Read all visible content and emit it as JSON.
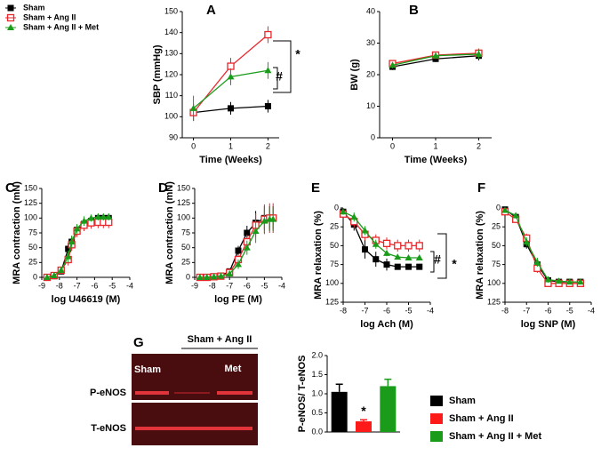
{
  "chart_data": [
    {
      "type": "line",
      "panel": "A",
      "ylabel": "SBP (mmHg)",
      "xlabel": "Time (Weeks)",
      "xlim": [
        -0.3,
        2.3
      ],
      "xticks": [
        0,
        1,
        2
      ],
      "ylim": [
        90,
        150
      ],
      "yticks": [
        90,
        100,
        110,
        120,
        130,
        140,
        150
      ],
      "x": [
        0,
        1,
        2
      ],
      "series": [
        {
          "name": "Sham",
          "color": "#000000",
          "marker": "square",
          "values": [
            102,
            104,
            105
          ],
          "errors": [
            4,
            3,
            3
          ]
        },
        {
          "name": "Sham + Ang II",
          "color": "#e8262b",
          "marker": "open-square",
          "values": [
            102,
            124,
            139
          ],
          "errors": [
            4,
            4,
            4
          ]
        },
        {
          "name": "Sham + Ang II + Met",
          "color": "#1a9c1a",
          "marker": "triangle",
          "values": [
            104,
            119,
            122
          ],
          "errors": [
            6,
            4,
            4
          ]
        }
      ],
      "annotations": [
        "*",
        "#"
      ]
    },
    {
      "type": "line",
      "panel": "B",
      "ylabel": "BW (g)",
      "xlabel": "Time (Weeks)",
      "xlim": [
        -0.3,
        2.3
      ],
      "xticks": [
        0,
        1,
        2
      ],
      "ylim": [
        0,
        40
      ],
      "yticks": [
        0,
        10,
        20,
        30,
        40
      ],
      "x": [
        0,
        1,
        2
      ],
      "series": [
        {
          "name": "Sham",
          "color": "#000000",
          "marker": "square",
          "values": [
            22.5,
            25,
            26
          ],
          "errors": [
            1,
            1,
            1.5
          ]
        },
        {
          "name": "Sham + Ang II",
          "color": "#e8262b",
          "marker": "open-square",
          "values": [
            23.5,
            26.2,
            26.8
          ],
          "errors": [
            1,
            1,
            1.5
          ]
        },
        {
          "name": "Sham + Ang II + Met",
          "color": "#1a9c1a",
          "marker": "triangle",
          "values": [
            23,
            26,
            26.5
          ],
          "errors": [
            1,
            1,
            1.5
          ]
        }
      ]
    },
    {
      "type": "line",
      "panel": "C",
      "ylabel": "MRA contraction (mN)",
      "xlabel": "log U46619 (M)",
      "xlim": [
        -9,
        -4
      ],
      "xticks": [
        -9,
        -8,
        -7,
        -6,
        -5,
        -4
      ],
      "ylim": [
        0,
        150
      ],
      "yticks": [
        0,
        25,
        50,
        75,
        100,
        125,
        150
      ],
      "x": [
        -8.7,
        -8.3,
        -7.9,
        -7.5,
        -7.3,
        -7.0,
        -6.6,
        -6.2,
        -5.8,
        -5.5,
        -5.2
      ],
      "series": [
        {
          "name": "Sham",
          "color": "#000000",
          "marker": "square",
          "values": [
            0,
            2,
            10,
            48,
            60,
            80,
            90,
            95,
            100,
            100,
            100
          ],
          "errors": [
            2,
            3,
            5,
            10,
            10,
            8,
            8,
            6,
            6,
            6,
            6
          ]
        },
        {
          "name": "Sham + Ang II",
          "color": "#e8262b",
          "marker": "open-square",
          "values": [
            0,
            3,
            12,
            30,
            55,
            78,
            88,
            92,
            93,
            93,
            93
          ],
          "errors": [
            2,
            3,
            6,
            10,
            10,
            10,
            10,
            10,
            10,
            10,
            10
          ]
        },
        {
          "name": "Sham + Ang II + Met",
          "color": "#1a9c1a",
          "marker": "triangle",
          "values": [
            0,
            3,
            12,
            35,
            60,
            82,
            95,
            100,
            102,
            102,
            102
          ],
          "errors": [
            2,
            3,
            5,
            10,
            10,
            8,
            8,
            6,
            6,
            6,
            6
          ]
        }
      ]
    },
    {
      "type": "line",
      "panel": "D",
      "ylabel": "MRA contraction (mN)",
      "xlabel": "log PE (M)",
      "xlim": [
        -9,
        -4
      ],
      "xticks": [
        -9,
        -8,
        -7,
        -6,
        -5,
        -4
      ],
      "ylim": [
        0,
        150
      ],
      "yticks": [
        0,
        25,
        50,
        75,
        100,
        125,
        150
      ],
      "x": [
        -8.7,
        -8.3,
        -7.9,
        -7.5,
        -7.0,
        -6.5,
        -6.0,
        -5.5,
        -5.0,
        -4.7,
        -4.5
      ],
      "series": [
        {
          "name": "Sham",
          "color": "#000000",
          "marker": "square",
          "values": [
            0,
            0,
            1,
            3,
            10,
            45,
            75,
            92,
            100,
            100,
            100
          ],
          "errors": [
            1,
            1,
            2,
            3,
            5,
            8,
            12,
            20,
            20,
            20,
            20
          ]
        },
        {
          "name": "Sham + Ang II",
          "color": "#e8262b",
          "marker": "open-square",
          "values": [
            0,
            0,
            1,
            2,
            8,
            30,
            60,
            88,
            98,
            100,
            100
          ],
          "errors": [
            1,
            1,
            2,
            3,
            5,
            8,
            12,
            20,
            25,
            25,
            25
          ]
        },
        {
          "name": "Sham + Ang II + Met",
          "color": "#1a9c1a",
          "marker": "triangle",
          "values": [
            0,
            0,
            1,
            2,
            6,
            22,
            50,
            78,
            95,
            98,
            98
          ],
          "errors": [
            1,
            1,
            2,
            3,
            5,
            8,
            12,
            20,
            20,
            20,
            20
          ]
        }
      ]
    },
    {
      "type": "line",
      "panel": "E",
      "ylabel": "MRA relaxation (%)",
      "xlabel": "log Ach (M)",
      "y_inverted": true,
      "xlim": [
        -8,
        -4
      ],
      "xticks": [
        -8,
        -7,
        -6,
        -5,
        -4
      ],
      "ylim": [
        0,
        125
      ],
      "yticks": [
        0,
        25,
        50,
        75,
        100,
        125
      ],
      "x": [
        -8,
        -7.5,
        -7,
        -6.5,
        -6,
        -5.5,
        -5,
        -4.5
      ],
      "series": [
        {
          "name": "Sham",
          "color": "#000000",
          "marker": "square",
          "values": [
            5,
            22,
            55,
            68,
            75,
            78,
            78,
            78
          ],
          "errors": [
            4,
            8,
            12,
            10,
            8,
            3,
            3,
            3
          ]
        },
        {
          "name": "Sham + Ang II",
          "color": "#e8262b",
          "marker": "open-square",
          "values": [
            8,
            18,
            35,
            43,
            47,
            50,
            50,
            50
          ],
          "errors": [
            5,
            8,
            8,
            8,
            8,
            8,
            8,
            8
          ]
        },
        {
          "name": "Sham + Ang II + Met",
          "color": "#1a9c1a",
          "marker": "triangle",
          "values": [
            5,
            12,
            30,
            48,
            60,
            65,
            66,
            66
          ],
          "errors": [
            4,
            6,
            6,
            6,
            4,
            3,
            3,
            3
          ]
        }
      ],
      "annotations": [
        "*",
        "#"
      ]
    },
    {
      "type": "line",
      "panel": "F",
      "ylabel": "MRA relaxation (%)",
      "xlabel": "log SNP (M)",
      "y_inverted": true,
      "xlim": [
        -8,
        -4
      ],
      "xticks": [
        -8,
        -7,
        -6,
        -5,
        -4
      ],
      "ylim": [
        0,
        125
      ],
      "yticks": [
        0,
        25,
        50,
        75,
        100,
        125
      ],
      "x": [
        -8,
        -7.5,
        -7,
        -6.5,
        -6,
        -5.5,
        -5,
        -4.5
      ],
      "series": [
        {
          "name": "Sham",
          "color": "#000000",
          "marker": "square",
          "values": [
            2,
            12,
            48,
            75,
            96,
            98,
            98,
            98
          ],
          "errors": [
            2,
            4,
            6,
            6,
            4,
            3,
            3,
            3
          ]
        },
        {
          "name": "Sham + Ang II",
          "color": "#e8262b",
          "marker": "open-square",
          "values": [
            5,
            15,
            40,
            80,
            100,
            100,
            100,
            100
          ],
          "errors": [
            2,
            4,
            6,
            6,
            4,
            3,
            3,
            3
          ]
        },
        {
          "name": "Sham + Ang II + Met",
          "color": "#1a9c1a",
          "marker": "triangle",
          "values": [
            3,
            10,
            45,
            72,
            95,
            97,
            98,
            98
          ],
          "errors": [
            2,
            4,
            6,
            6,
            4,
            3,
            3,
            3
          ]
        }
      ]
    },
    {
      "type": "bar",
      "panel": "G",
      "ylabel": "P-eNOS/ T-eNOS",
      "categories": [
        "Sham",
        "Sham + Ang II",
        "Sham + Ang II + Met"
      ],
      "colors": [
        "#000000",
        "#ff1a1a",
        "#1a9c1a"
      ],
      "values": [
        1.05,
        0.28,
        1.2
      ],
      "errors": [
        0.2,
        0.04,
        0.18
      ],
      "ylim": [
        0,
        2
      ],
      "yticks": [
        {
          "value": 0,
          "label": "0.0"
        },
        {
          "value": 0.5,
          "label": "0.5"
        },
        {
          "value": 1,
          "label": "1.0"
        },
        {
          "value": 1.5,
          "label": "1.5"
        },
        {
          "value": 2,
          "label": "2.0"
        }
      ],
      "annotations": [
        "*"
      ]
    }
  ],
  "blot": {
    "group": "Sham + Ang II",
    "lanes": [
      "Sham",
      "Met"
    ],
    "rows": [
      "P-eNOS",
      "T-eNOS"
    ]
  }
}
